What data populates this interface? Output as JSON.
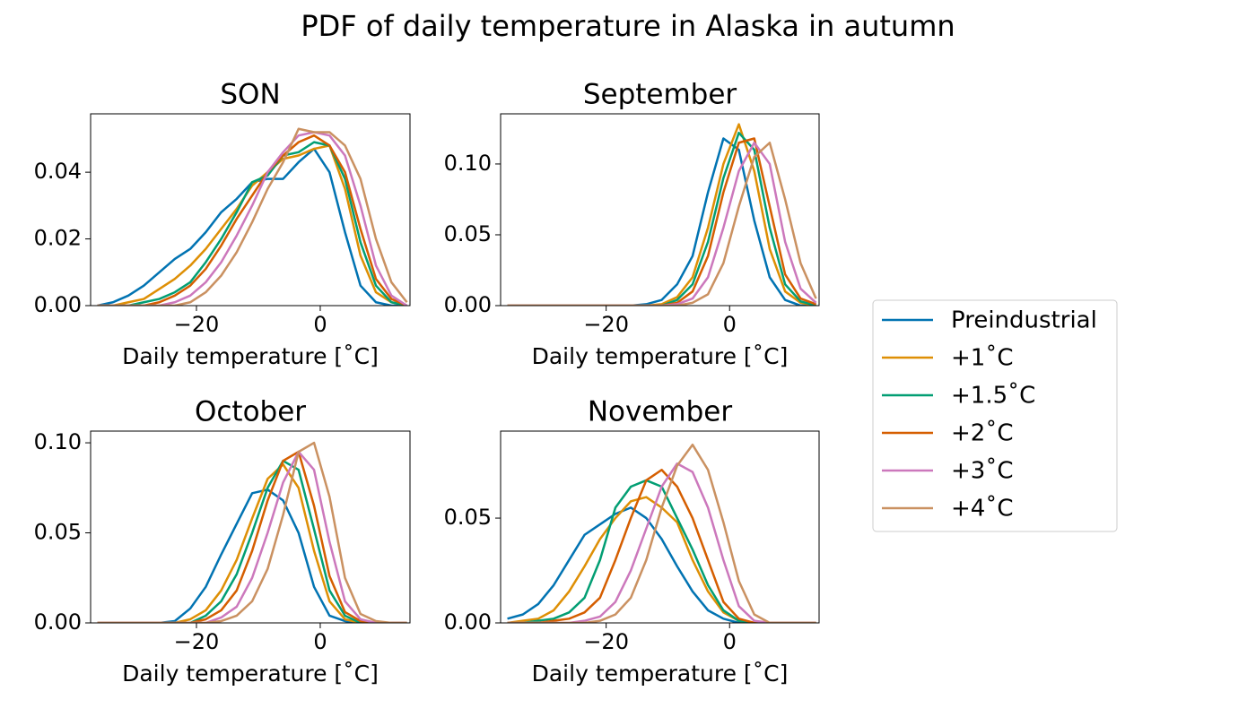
{
  "title": "PDF of daily temperature in Alaska in autumn",
  "chart_data": [
    {
      "type": "line",
      "title": "SON",
      "x_label": "Daily temperature [˚C]",
      "x": [
        -36,
        -33.5,
        -31,
        -28.5,
        -26,
        -23.5,
        -21,
        -18.5,
        -16,
        -13.5,
        -11,
        -8.5,
        -6,
        -3.5,
        -1,
        1.5,
        4,
        6.5,
        9,
        11.5,
        14
      ],
      "xlim": [
        -37.1,
        14.5
      ],
      "ylim": [
        0,
        0.0575
      ],
      "xticks": [
        {
          "value": -20,
          "label": "−20"
        },
        0
      ],
      "yticks": [
        {
          "value": 0,
          "label": "0.00"
        },
        {
          "value": 0.02,
          "label": "0.02"
        },
        {
          "value": 0.04,
          "label": "0.04"
        }
      ],
      "series": [
        {
          "name": "Preindustrial",
          "color": "#0173b2",
          "values": [
            0,
            0.001,
            0.003,
            0.006,
            0.01,
            0.014,
            0.017,
            0.022,
            0.028,
            0.032,
            0.037,
            0.038,
            0.038,
            0.043,
            0.047,
            0.04,
            0.022,
            0.006,
            0.001,
            0,
            0
          ]
        },
        {
          "name": "+1˚C",
          "color": "#de8f05",
          "values": [
            0,
            0,
            0.001,
            0.002,
            0.005,
            0.008,
            0.012,
            0.017,
            0.023,
            0.029,
            0.036,
            0.04,
            0.044,
            0.045,
            0.047,
            0.048,
            0.035,
            0.015,
            0.004,
            0.001,
            0
          ]
        },
        {
          "name": "+1.5˚C",
          "color": "#029e73",
          "values": [
            0,
            0,
            0,
            0.001,
            0.002,
            0.004,
            0.007,
            0.013,
            0.02,
            0.028,
            0.037,
            0.039,
            0.045,
            0.046,
            0.049,
            0.048,
            0.038,
            0.019,
            0.006,
            0.001,
            0
          ]
        },
        {
          "name": "+2˚C",
          "color": "#d55e00",
          "values": [
            0,
            0,
            0,
            0,
            0.001,
            0.003,
            0.006,
            0.011,
            0.018,
            0.026,
            0.033,
            0.04,
            0.045,
            0.049,
            0.051,
            0.048,
            0.04,
            0.023,
            0.008,
            0.002,
            0
          ]
        },
        {
          "name": "+3˚C",
          "color": "#cc78bc",
          "values": [
            0,
            0,
            0,
            0,
            0,
            0.001,
            0.003,
            0.007,
            0.013,
            0.021,
            0.03,
            0.04,
            0.046,
            0.051,
            0.052,
            0.051,
            0.045,
            0.03,
            0.012,
            0.003,
            0
          ]
        },
        {
          "name": "+4˚C",
          "color": "#ca9161",
          "values": [
            0,
            0,
            0,
            0,
            0,
            0,
            0.001,
            0.004,
            0.009,
            0.016,
            0.025,
            0.035,
            0.043,
            0.053,
            0.052,
            0.052,
            0.048,
            0.038,
            0.02,
            0.007,
            0.001
          ]
        }
      ]
    },
    {
      "type": "line",
      "title": "September",
      "x_label": "Daily temperature [˚C]",
      "x": [
        -36,
        -33.5,
        -31,
        -28.5,
        -26,
        -23.5,
        -21,
        -18.5,
        -16,
        -13.5,
        -11,
        -8.5,
        -6,
        -3.5,
        -1,
        1.5,
        4,
        6.5,
        9,
        11.5,
        14
      ],
      "xlim": [
        -37.1,
        14.5
      ],
      "ylim": [
        0,
        0.1354
      ],
      "xticks": [
        {
          "value": -20,
          "label": "−20"
        },
        0
      ],
      "yticks": [
        {
          "value": 0,
          "label": "0.00"
        },
        {
          "value": 0.05,
          "label": "0.05"
        },
        {
          "value": 0.1,
          "label": "0.10"
        }
      ],
      "series": [
        {
          "color": "#0173b2",
          "values": [
            0,
            0,
            0,
            0,
            0,
            0,
            0,
            0,
            0,
            0.001,
            0.004,
            0.015,
            0.035,
            0.08,
            0.118,
            0.11,
            0.06,
            0.02,
            0.004,
            0,
            0
          ]
        },
        {
          "color": "#de8f05",
          "values": [
            0,
            0,
            0,
            0,
            0,
            0,
            0,
            0,
            0,
            0,
            0.001,
            0.006,
            0.02,
            0.055,
            0.1,
            0.128,
            0.095,
            0.04,
            0.01,
            0.002,
            0
          ]
        },
        {
          "color": "#029e73",
          "values": [
            0,
            0,
            0,
            0,
            0,
            0,
            0,
            0,
            0,
            0,
            0,
            0.004,
            0.015,
            0.045,
            0.09,
            0.122,
            0.11,
            0.055,
            0.015,
            0.003,
            0
          ]
        },
        {
          "color": "#d55e00",
          "values": [
            0,
            0,
            0,
            0,
            0,
            0,
            0,
            0,
            0,
            0,
            0,
            0.002,
            0.01,
            0.035,
            0.08,
            0.115,
            0.118,
            0.07,
            0.022,
            0.005,
            0.001
          ]
        },
        {
          "color": "#cc78bc",
          "values": [
            0,
            0,
            0,
            0,
            0,
            0,
            0,
            0,
            0,
            0,
            0,
            0.001,
            0.005,
            0.02,
            0.055,
            0.095,
            0.115,
            0.1,
            0.045,
            0.012,
            0.002
          ]
        },
        {
          "color": "#ca9161",
          "values": [
            0,
            0,
            0,
            0,
            0,
            0,
            0,
            0,
            0,
            0,
            0,
            0,
            0.002,
            0.008,
            0.03,
            0.07,
            0.105,
            0.115,
            0.075,
            0.03,
            0.005
          ]
        }
      ]
    },
    {
      "type": "line",
      "title": "October",
      "x_label": "Daily temperature [˚C]",
      "x": [
        -36,
        -33.5,
        -31,
        -28.5,
        -26,
        -23.5,
        -21,
        -18.5,
        -16,
        -13.5,
        -11,
        -8.5,
        -6,
        -3.5,
        -1,
        1.5,
        4,
        6.5,
        9,
        11.5,
        14
      ],
      "xlim": [
        -37.1,
        14.5
      ],
      "ylim": [
        0,
        0.1065
      ],
      "xticks": [
        {
          "value": -20,
          "label": "−20"
        },
        0
      ],
      "yticks": [
        {
          "value": 0,
          "label": "0.00"
        },
        {
          "value": 0.05,
          "label": "0.05"
        },
        {
          "value": 0.1,
          "label": "0.10"
        }
      ],
      "series": [
        {
          "color": "#0173b2",
          "values": [
            0,
            0,
            0,
            0,
            0,
            0.001,
            0.008,
            0.02,
            0.038,
            0.055,
            0.072,
            0.074,
            0.068,
            0.05,
            0.02,
            0.004,
            0.001,
            0,
            0,
            0,
            0
          ]
        },
        {
          "color": "#de8f05",
          "values": [
            0,
            0,
            0,
            0,
            0,
            0,
            0.002,
            0.007,
            0.018,
            0.035,
            0.058,
            0.08,
            0.088,
            0.075,
            0.04,
            0.012,
            0.002,
            0,
            0,
            0,
            0
          ]
        },
        {
          "color": "#029e73",
          "values": [
            0,
            0,
            0,
            0,
            0,
            0,
            0,
            0.004,
            0.012,
            0.027,
            0.05,
            0.075,
            0.09,
            0.085,
            0.052,
            0.018,
            0.004,
            0,
            0,
            0,
            0
          ]
        },
        {
          "color": "#d55e00",
          "values": [
            0,
            0,
            0,
            0,
            0,
            0,
            0,
            0.002,
            0.007,
            0.018,
            0.04,
            0.068,
            0.09,
            0.095,
            0.065,
            0.026,
            0.006,
            0.001,
            0,
            0,
            0
          ]
        },
        {
          "color": "#cc78bc",
          "values": [
            0,
            0,
            0,
            0,
            0,
            0,
            0,
            0,
            0.003,
            0.009,
            0.025,
            0.05,
            0.078,
            0.095,
            0.085,
            0.045,
            0.012,
            0.002,
            0,
            0,
            0
          ]
        },
        {
          "color": "#ca9161",
          "values": [
            0,
            0,
            0,
            0,
            0,
            0,
            0,
            0,
            0.001,
            0.004,
            0.012,
            0.03,
            0.06,
            0.095,
            0.1,
            0.07,
            0.025,
            0.005,
            0.001,
            0,
            0
          ]
        }
      ]
    },
    {
      "type": "line",
      "title": "November",
      "x_label": "Daily temperature [˚C]",
      "x": [
        -36,
        -33.5,
        -31,
        -28.5,
        -26,
        -23.5,
        -21,
        -18.5,
        -16,
        -13.5,
        -11,
        -8.5,
        -6,
        -3.5,
        -1,
        1.5,
        4,
        6.5,
        9,
        11.5,
        14
      ],
      "xlim": [
        -37.1,
        14.5
      ],
      "ylim": [
        0,
        0.0915
      ],
      "xticks": [
        {
          "value": -20,
          "label": "−20"
        },
        0
      ],
      "yticks": [
        {
          "value": 0,
          "label": "0.00"
        },
        {
          "value": 0.05,
          "label": "0.05"
        }
      ],
      "series": [
        {
          "color": "#0173b2",
          "values": [
            0.002,
            0.004,
            0.009,
            0.018,
            0.03,
            0.042,
            0.047,
            0.052,
            0.055,
            0.05,
            0.04,
            0.027,
            0.015,
            0.006,
            0.002,
            0,
            0,
            0,
            0,
            0,
            0
          ]
        },
        {
          "color": "#de8f05",
          "values": [
            0,
            0.001,
            0.002,
            0.006,
            0.015,
            0.027,
            0.04,
            0.05,
            0.058,
            0.06,
            0.055,
            0.048,
            0.03,
            0.015,
            0.005,
            0.001,
            0,
            0,
            0,
            0,
            0
          ]
        },
        {
          "color": "#029e73",
          "values": [
            0,
            0,
            0.001,
            0.002,
            0.005,
            0.012,
            0.03,
            0.055,
            0.065,
            0.068,
            0.065,
            0.05,
            0.035,
            0.018,
            0.006,
            0.001,
            0,
            0,
            0,
            0,
            0
          ]
        },
        {
          "color": "#d55e00",
          "values": [
            0,
            0,
            0,
            0.001,
            0.002,
            0.005,
            0.012,
            0.03,
            0.05,
            0.068,
            0.073,
            0.065,
            0.05,
            0.03,
            0.01,
            0.002,
            0,
            0,
            0,
            0,
            0
          ]
        },
        {
          "color": "#cc78bc",
          "values": [
            0,
            0,
            0,
            0,
            0,
            0.001,
            0.003,
            0.01,
            0.025,
            0.045,
            0.065,
            0.076,
            0.072,
            0.055,
            0.03,
            0.008,
            0.001,
            0,
            0,
            0,
            0
          ]
        },
        {
          "color": "#ca9161",
          "values": [
            0,
            0,
            0,
            0,
            0,
            0,
            0.001,
            0.004,
            0.012,
            0.03,
            0.055,
            0.075,
            0.085,
            0.073,
            0.048,
            0.02,
            0.004,
            0,
            0,
            0,
            0
          ]
        }
      ]
    }
  ]
}
